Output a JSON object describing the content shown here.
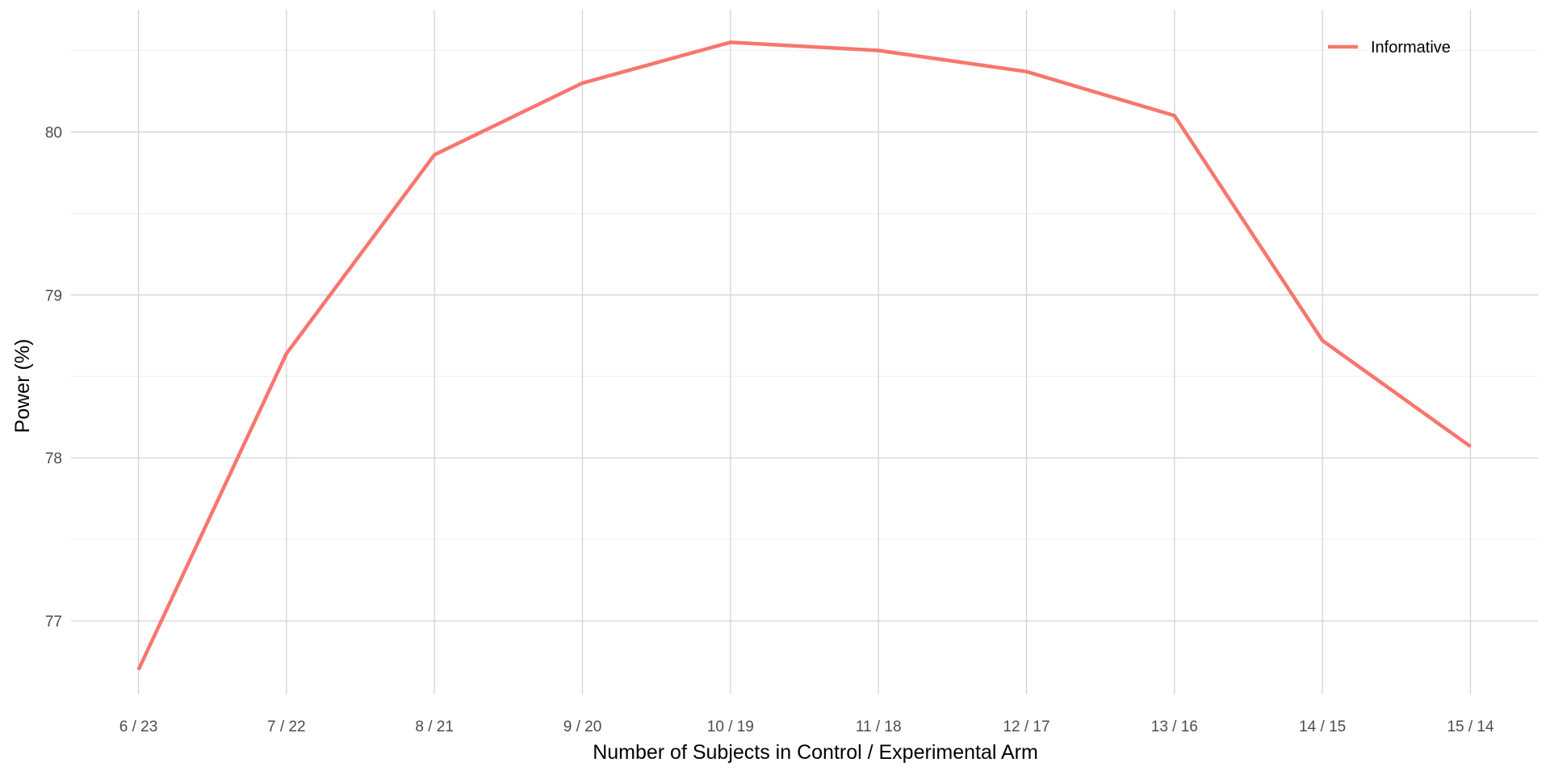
{
  "chart_data": {
    "type": "line",
    "title": "",
    "xlabel": "Number of Subjects in Control / Experimental Arm",
    "ylabel": "Power (%)",
    "categories": [
      "6 / 23",
      "7 / 22",
      "8 / 21",
      "9 / 20",
      "10 / 19",
      "11 / 18",
      "12 / 17",
      "13 / 16",
      "14 / 15",
      "15 / 14"
    ],
    "y_ticks": [
      77,
      78,
      79,
      80
    ],
    "ylim": [
      76.55,
      80.75
    ],
    "grid": true,
    "legend_position": "top-right",
    "series": [
      {
        "name": "Informative",
        "color": "#F8766D",
        "values": [
          76.7,
          78.64,
          79.86,
          80.3,
          80.55,
          80.5,
          80.37,
          80.1,
          78.72,
          78.07
        ]
      }
    ]
  }
}
